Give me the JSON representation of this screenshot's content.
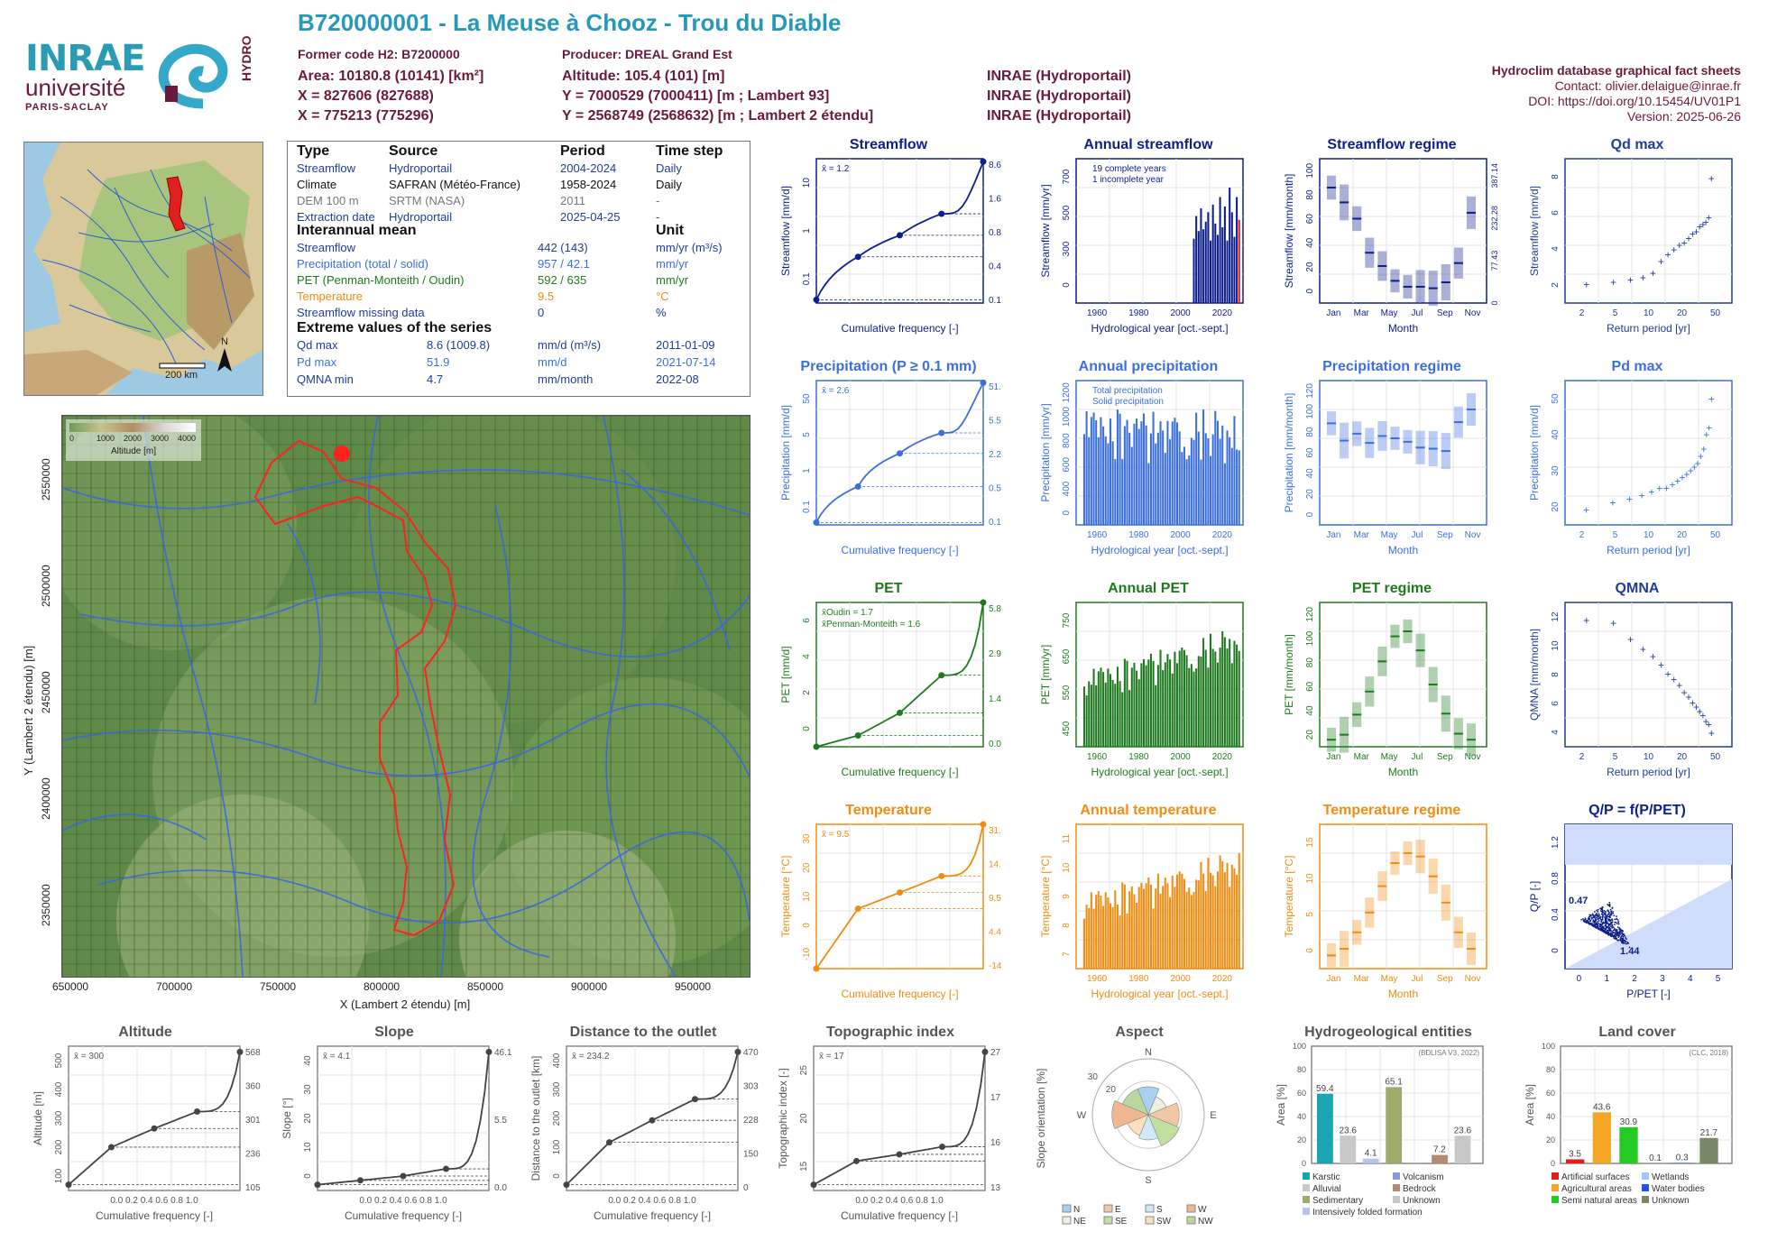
{
  "header": {
    "title": "B720000001 - La Meuse à Chooz - Trou du Diable",
    "former_code": "Former code H2: B7200000",
    "producer": "Producer: DREAL Grand Est",
    "area": "Area: 10180.8 (10141) [km²]",
    "altitude": "Altitude: 105.4 (101) [m]",
    "x93": "X = 827606 (827688)",
    "y93": "Y = 7000529 (7000411) [m ; Lambert 93]",
    "x2": "X = 775213 (775296)",
    "y2": "Y = 2568749 (2568632) [m ; Lambert 2 étendu]",
    "src1": "INRAE (Hydroportail)",
    "src2": "INRAE (Hydroportail)",
    "src3": "INRAE (Hydroportail)"
  },
  "logos": {
    "inrae": "INRAE",
    "universite": "université",
    "paris_saclay": "PARIS-SACLAY",
    "hydro": "HYDRO"
  },
  "right_info": {
    "l1": "Hydroclim database graphical fact sheets",
    "l2": "Contact: olivier.delaigue@inrae.fr",
    "l3": "DOI: https://doi.org/10.15454/UV01P1",
    "l4": "Version: 2025-06-26"
  },
  "info": {
    "h_type": "Type",
    "h_source": "Source",
    "h_period": "Period",
    "h_timestep": "Time step",
    "rows": [
      {
        "type": "Streamflow",
        "source": "Hydroportail",
        "period": "2004-2024",
        "ts": "Daily",
        "color": "#1f3d99"
      },
      {
        "type": "Climate",
        "source": "SAFRAN (Météo-France)",
        "period": "1958-2024",
        "ts": "Daily",
        "color": "#111111"
      },
      {
        "type": "DEM 100 m",
        "source": "SRTM (NASA)",
        "period": "2011",
        "ts": "-",
        "color": "#777777"
      },
      {
        "type": "Extraction date",
        "source": "Hydroportail",
        "period": "2025-04-25",
        "ts": "-",
        "color": "#1f3d99"
      }
    ],
    "h_mean": "Interannual mean",
    "h_unit": "Unit",
    "means": [
      {
        "label": "Streamflow",
        "value": "442 (143)",
        "unit": "mm/yr (m³/s)",
        "color": "#1f3d99"
      },
      {
        "label": "Precipitation (total / solid)",
        "value": "957 / 42.1",
        "unit": "mm/yr",
        "color": "#3b6fe0"
      },
      {
        "label": "PET (Penman-Monteith / Oudin)",
        "value": "592 / 635",
        "unit": "mm/yr",
        "color": "#1e7a1e"
      },
      {
        "label": "Temperature",
        "value": "9.5",
        "unit": "°C",
        "color": "#f08c12"
      },
      {
        "label": "Streamflow missing data",
        "value": "0",
        "unit": "%",
        "color": "#1f3d99"
      }
    ],
    "h_extreme": "Extreme values of the series",
    "extremes": [
      {
        "label": "Qd max",
        "value": "8.6 (1009.8)",
        "unit": "mm/d (m³/s)",
        "date": "2011-01-09",
        "color": "#1f3d99"
      },
      {
        "label": "Pd max",
        "value": "51.9",
        "unit": "mm/d",
        "date": "2021-07-14",
        "color": "#3b6fe0"
      },
      {
        "label": "QMNA min",
        "value": "4.7",
        "unit": "mm/month",
        "date": "2022-08",
        "color": "#1f3d99"
      }
    ]
  },
  "small_map": {
    "scale": "200 km",
    "north": "N"
  },
  "big_map": {
    "legend_title": "Altitude [m]",
    "legend_ticks": [
      "0",
      "1000",
      "2000",
      "3000",
      "4000"
    ],
    "xlabel": "X (Lambert 2 étendu) [m]",
    "ylabel": "Y (Lambert 2 étendu) [m]",
    "xticks": [
      "650000",
      "700000",
      "750000",
      "800000",
      "850000",
      "900000",
      "950000"
    ],
    "yticks": [
      "2550000",
      "2500000",
      "2450000",
      "2400000",
      "2350000"
    ]
  },
  "chart_data": [
    {
      "id": "streamflow_cdf",
      "type": "line",
      "title": "Streamflow",
      "ylabel": "Streamflow [mm/d]",
      "xlabel": "Cumulative frequency [-]",
      "mean_label": "x̄ = 1.2",
      "log_y": true,
      "ylim": [
        0.1,
        10
      ],
      "y_ticks": [
        "0.1",
        "1",
        "10"
      ],
      "right_labels": [
        "8.6",
        "1.6",
        "0.8",
        "0.4",
        "0.1"
      ],
      "x": [
        0,
        0.25,
        0.5,
        0.75,
        1
      ],
      "y": [
        0.1,
        0.4,
        0.8,
        1.6,
        8.6
      ],
      "color": "#0d1f8a"
    },
    {
      "id": "annual_streamflow",
      "type": "bar",
      "title": "Annual streamflow",
      "ylabel": "Streamflow [mm/yr]",
      "xlabel": "Hydrological year [oct.-sept.]",
      "x_ticks": [
        "1960",
        "1980",
        "2000",
        "2020"
      ],
      "y_ticks": [
        "0",
        "300",
        "500",
        "700"
      ],
      "legend": [
        "19 complete years",
        "1 incomplete year"
      ],
      "years": [
        2005,
        2006,
        2007,
        2008,
        2009,
        2010,
        2011,
        2012,
        2013,
        2014,
        2015,
        2016,
        2017,
        2018,
        2019,
        2020,
        2021,
        2022,
        2023,
        2024
      ],
      "values": [
        340,
        460,
        380,
        500,
        390,
        430,
        480,
        330,
        520,
        420,
        360,
        560,
        400,
        510,
        330,
        610,
        480,
        350,
        560,
        440
      ],
      "color": "#0d1f8a"
    },
    {
      "id": "streamflow_regime",
      "type": "box",
      "title": "Streamflow regime",
      "ylabel": "Streamflow [mm/month]",
      "ylabel_right": "Streamflow [m³/s]",
      "xlabel": "Month",
      "x_ticks": [
        "Jan",
        "Mar",
        "May",
        "Jul",
        "Sep",
        "Nov"
      ],
      "y_ticks": [
        "0",
        "20",
        "40",
        "60",
        "80",
        "100"
      ],
      "right_ticks": [
        "0",
        "77.43",
        "232.28",
        "387.14"
      ],
      "medians": [
        78,
        68,
        57,
        34,
        25,
        15,
        11,
        11,
        10,
        14,
        27,
        61
      ],
      "color": "#0d1f8a"
    },
    {
      "id": "qd_max",
      "type": "scatter",
      "title": "Qd max",
      "ylabel": "Streamflow [mm/d]",
      "xlabel": "Return period [yr]",
      "x_ticks": [
        "2",
        "5",
        "10",
        "20",
        "50"
      ],
      "y_ticks": [
        "2",
        "4",
        "6",
        "8"
      ],
      "values": [
        4.0,
        4.1,
        4.2,
        4.3,
        4.5,
        5.0,
        5.3,
        5.5,
        5.7,
        5.8,
        6.0,
        6.2,
        6.3,
        6.5,
        6.6,
        6.7,
        6.9,
        8.6
      ],
      "color": "#1f3d99"
    },
    {
      "id": "precip_cdf",
      "type": "line",
      "title": "Precipitation (P ≥ 0.1 mm)",
      "ylabel": "Precipitation [mm/d]",
      "xlabel": "Cumulative frequency [-]",
      "mean_label": "x̄ = 2.6",
      "log_y": true,
      "right_labels": [
        "51.9",
        "5.5",
        "2.2",
        "0.5",
        "0.1"
      ],
      "y_ticks": [
        "0.1",
        "1",
        "5",
        "50"
      ],
      "x": [
        0,
        0.25,
        0.5,
        0.75,
        1
      ],
      "y": [
        0.1,
        0.5,
        2.2,
        5.5,
        51.9
      ],
      "color": "#3b6fe0"
    },
    {
      "id": "annual_precip",
      "type": "bar",
      "title": "Annual precipitation",
      "ylabel": "Precipitation [mm/yr]",
      "xlabel": "Hydrological year [oct.-sept.]",
      "x_ticks": [
        "1960",
        "1980",
        "2000",
        "2020"
      ],
      "y_ticks": [
        "0",
        "400",
        "600",
        "800",
        "1000",
        "1200"
      ],
      "legend": [
        "Total precipitation",
        "Solid precipitation"
      ],
      "color": "#3b6fe0"
    },
    {
      "id": "precip_regime",
      "type": "box",
      "title": "Precipitation regime",
      "ylabel": "Precipitation [mm/month]",
      "xlabel": "Month",
      "x_ticks": [
        "Jan",
        "Mar",
        "May",
        "Jul",
        "Sep",
        "Nov"
      ],
      "y_ticks": [
        "0",
        "20",
        "40",
        "60",
        "80",
        "100",
        "120"
      ],
      "medians": [
        88,
        73,
        79,
        71,
        77,
        75,
        72,
        67,
        66,
        64,
        89,
        100
      ],
      "color": "#3b6fe0"
    },
    {
      "id": "pd_max",
      "type": "scatter",
      "title": "Pd max",
      "ylabel": "Precipitation [mm/d]",
      "xlabel": "Return period [yr]",
      "x_ticks": [
        "2",
        "5",
        "10",
        "20",
        "50"
      ],
      "y_ticks": [
        "20",
        "30",
        "40",
        "50"
      ],
      "values": [
        21,
        23,
        24,
        25,
        26,
        27,
        27,
        28,
        29,
        30,
        31,
        32,
        33,
        34,
        36,
        38,
        42,
        44,
        52
      ],
      "color": "#3b6fe0"
    },
    {
      "id": "pet_cdf",
      "type": "line",
      "title": "PET",
      "ylabel": "PET [mm/d]",
      "xlabel": "Cumulative frequency [-]",
      "mean_labels": [
        "x̄Oudin = 1.7",
        "x̄Penman-Monteith = 1.6"
      ],
      "right_labels": [
        "5.8",
        "2.9",
        "1.4",
        "0.0"
      ],
      "y_ticks": [
        "0",
        "2",
        "4",
        "6"
      ],
      "x": [
        0,
        0.25,
        0.5,
        0.75,
        1
      ],
      "y": [
        0.05,
        0.5,
        1.4,
        2.9,
        5.8
      ],
      "color": "#1e7a1e"
    },
    {
      "id": "annual_pet",
      "type": "bar",
      "title": "Annual PET",
      "ylabel": "PET [mm/yr]",
      "xlabel": "Hydrological year [oct.-sept.]",
      "x_ticks": [
        "1960",
        "1980",
        "2000",
        "2020"
      ],
      "y_ticks": [
        "450",
        "550",
        "650",
        "750"
      ],
      "color": "#1e7a1e"
    },
    {
      "id": "pet_regime",
      "type": "box",
      "title": "PET regime",
      "ylabel": "PET [mm/month]",
      "xlabel": "Month",
      "x_ticks": [
        "Jan",
        "Mar",
        "May",
        "Jul",
        "Sep",
        "Nov"
      ],
      "y_ticks": [
        "20",
        "40",
        "60",
        "80",
        "100",
        "120"
      ],
      "medians": [
        7,
        12,
        32,
        55,
        85,
        110,
        115,
        96,
        62,
        33,
        13,
        7
      ],
      "color": "#1e7a1e"
    },
    {
      "id": "qmna",
      "type": "scatter",
      "title": "QMNA",
      "ylabel": "QMNA [mm/month]",
      "xlabel": "Return period [yr]",
      "x_ticks": [
        "2",
        "5",
        "10",
        "20",
        "50"
      ],
      "y_ticks": [
        "4",
        "6",
        "8",
        "10",
        "12"
      ],
      "values": [
        12.5,
        12.3,
        11.2,
        10.5,
        10.0,
        9.4,
        8.8,
        8.4,
        8.0,
        7.5,
        7.2,
        6.8,
        6.5,
        6.2,
        5.9,
        5.5,
        5.3,
        4.7
      ],
      "color": "#1f3d99"
    },
    {
      "id": "temp_cdf",
      "type": "line",
      "title": "Temperature",
      "ylabel": "Temperature [°C]",
      "xlabel": "Cumulative frequency [-]",
      "mean_label": "x̄ = 9.5",
      "right_labels": [
        "31.0",
        "14.7",
        "9.5",
        "4.4",
        "-14.5"
      ],
      "y_ticks": [
        "-10",
        "0",
        "10",
        "20",
        "30"
      ],
      "x": [
        0,
        0.25,
        0.5,
        0.75,
        1
      ],
      "y": [
        -14.5,
        4.4,
        9.5,
        14.7,
        31.0
      ],
      "color": "#f08c12"
    },
    {
      "id": "annual_temp",
      "type": "bar",
      "title": "Annual temperature",
      "ylabel": "Temperature [°C]",
      "xlabel": "Hydrological year [oct.-sept.]",
      "x_ticks": [
        "1960",
        "1980",
        "2000",
        "2020"
      ],
      "y_ticks": [
        "7",
        "8",
        "9",
        "10",
        "11"
      ],
      "color": "#f08c12"
    },
    {
      "id": "temp_regime",
      "type": "box",
      "title": "Temperature regime",
      "ylabel": "Temperature [°C]",
      "xlabel": "Month",
      "x_ticks": [
        "Jan",
        "Mar",
        "May",
        "Jul",
        "Sep",
        "Nov"
      ],
      "y_ticks": [
        "0",
        "5",
        "10",
        "15"
      ],
      "medians": [
        2,
        3,
        5.5,
        8.5,
        12.5,
        16,
        17.5,
        17,
        14,
        10,
        5.5,
        3
      ],
      "color": "#f08c12"
    },
    {
      "id": "qp_ppet",
      "type": "scatter",
      "title": "Q/P = f(P/PET)",
      "ylabel": "Q/P [-]",
      "xlabel": "P/PET [-]",
      "x_ticks": [
        "0",
        "1",
        "2",
        "3",
        "4",
        "5"
      ],
      "y_ticks": [
        "0",
        "0.4",
        "0.8",
        "1.2"
      ],
      "annotations": [
        "0.47",
        "1.44"
      ],
      "color": "#0d1f8a"
    },
    {
      "id": "altitude_cdf",
      "type": "line",
      "title": "Altitude",
      "ylabel": "Altitude [m]",
      "xlabel": "Cumulative frequency [-]",
      "mean_label": "x̄ = 300",
      "right_labels": [
        "568",
        "360",
        "301",
        "236",
        "105"
      ],
      "y_ticks": [
        "100",
        "200",
        "300",
        "400",
        "500"
      ],
      "x": [
        0,
        0.25,
        0.5,
        0.75,
        1
      ],
      "y": [
        105,
        236,
        301,
        360,
        568
      ],
      "color": "#555555"
    },
    {
      "id": "slope_cdf",
      "type": "line",
      "title": "Slope",
      "ylabel": "Slope [°]",
      "xlabel": "Cumulative frequency [-]",
      "mean_label": "x̄ = 4.1",
      "right_labels": [
        "46.1",
        "5.5",
        "0.0"
      ],
      "y_ticks": [
        "0",
        "10",
        "20",
        "30",
        "40"
      ],
      "x": [
        0,
        0.25,
        0.5,
        0.75,
        1
      ],
      "y": [
        0,
        1.5,
        3,
        5.5,
        46.1
      ],
      "color": "#555555"
    },
    {
      "id": "distance_cdf",
      "type": "line",
      "title": "Distance to the outlet",
      "ylabel": "Distance to the outlet [km]",
      "xlabel": "Cumulative frequency [-]",
      "mean_label": "x̄ = 234.2",
      "right_labels": [
        "470",
        "303",
        "228",
        "150",
        "0"
      ],
      "y_ticks": [
        "0",
        "100",
        "200",
        "300",
        "400"
      ],
      "x": [
        0,
        0.25,
        0.5,
        0.75,
        1
      ],
      "y": [
        0,
        150,
        228,
        303,
        470
      ],
      "color": "#555555"
    },
    {
      "id": "topo_cdf",
      "type": "line",
      "title": "Topographic index",
      "ylabel": "Topographic index [-]",
      "xlabel": "Cumulative frequency [-]",
      "mean_label": "x̄ = 17",
      "right_labels": [
        "27",
        "17",
        "16",
        "13"
      ],
      "y_ticks": [
        "15",
        "20",
        "25"
      ],
      "x": [
        0,
        0.25,
        0.5,
        0.75,
        1
      ],
      "y": [
        13,
        15.5,
        16.2,
        17,
        27
      ],
      "color": "#555555"
    },
    {
      "id": "aspect",
      "type": "pie",
      "title": "Aspect",
      "ylabel": "Slope orientation [%]",
      "directions": [
        "N",
        "E",
        "S",
        "W"
      ],
      "ring_labels": [
        "20",
        "30"
      ],
      "legend": [
        "N",
        "E",
        "S",
        "W",
        "NE",
        "SE",
        "SW",
        "NW"
      ]
    },
    {
      "id": "hydrogeology",
      "type": "bar",
      "title": "Hydrogeological entities",
      "ylabel": "Area [%]",
      "note": "(BDLISA V3, 2022)",
      "y_ticks": [
        "0",
        "20",
        "40",
        "60",
        "80",
        "100"
      ],
      "categories": [
        "Karstic",
        "Alluvial",
        "Intensively folded formation",
        "Sedimentary",
        "Volcanism",
        "Bedrock",
        "Unknown"
      ],
      "values": [
        59.4,
        23.6,
        4.1,
        65.1,
        0,
        7.2,
        23.6
      ],
      "colors": [
        "#1aa3b0",
        "#c8c8c8",
        "#b9c3ee",
        "#9caa6a",
        "#8899dd",
        "#b58a74",
        "#c8c8c8"
      ],
      "legend": [
        "Karstic",
        "Volcanism",
        "Alluvial",
        "Bedrock",
        "Sedimentary",
        "Unknown",
        "Intensively folded formation"
      ]
    },
    {
      "id": "land_cover",
      "type": "bar",
      "title": "Land cover",
      "ylabel": "Area [%]",
      "note": "(CLC, 2018)",
      "y_ticks": [
        "0",
        "20",
        "40",
        "60",
        "80",
        "100"
      ],
      "categories": [
        "Artificial surfaces",
        "Agricultural areas",
        "Semi natural areas",
        "Wetlands",
        "Water bodies",
        "Unknown"
      ],
      "values": [
        3.5,
        43.6,
        30.9,
        0.1,
        0.3,
        21.7
      ],
      "colors": [
        "#e02020",
        "#f5a623",
        "#22cc22",
        "#a0c8ff",
        "#2050ff",
        "#778866"
      ],
      "legend": [
        "Artificial surfaces",
        "Wetlands",
        "Agricultural areas",
        "Water bodies",
        "Semi natural areas",
        "Unknown"
      ]
    }
  ]
}
